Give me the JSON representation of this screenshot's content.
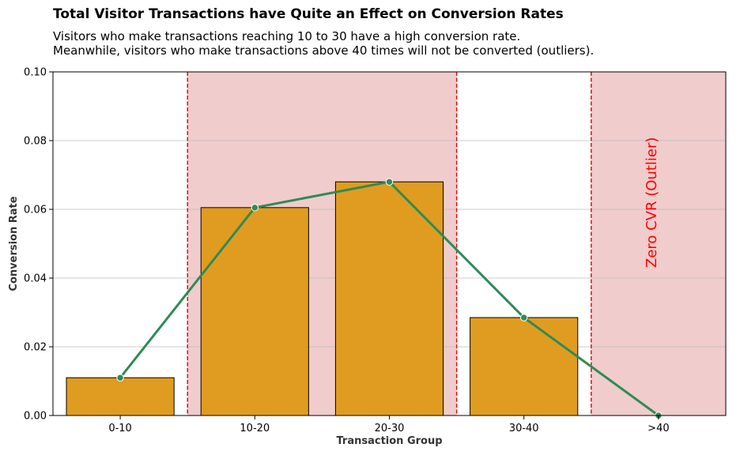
{
  "chart_data": {
    "type": "bar",
    "title": "Total Visitor Transactions have Quite an Effect on Conversion Rates",
    "subtitle_lines": [
      "Visitors who make transactions reaching 10 to 30 have a high conversion rate.",
      "Meanwhile, visitors who make transactions above 40 times will not be converted (outliers)."
    ],
    "xlabel": "Transaction Group",
    "ylabel": "Conversion Rate",
    "categories": [
      "0-10",
      "10-20",
      "20-30",
      "30-40",
      ">40"
    ],
    "values": [
      0.011,
      0.0605,
      0.068,
      0.0285,
      0.0
    ],
    "line_values": [
      0.011,
      0.0605,
      0.068,
      0.0285,
      0.0
    ],
    "ylim": [
      0,
      0.1
    ],
    "yticks": [
      "0.00",
      "0.02",
      "0.04",
      "0.06",
      "0.08",
      "0.10"
    ],
    "ytick_values": [
      0,
      0.02,
      0.04,
      0.06,
      0.08,
      0.1
    ],
    "grid": "horizontal",
    "highlight_ranges": [
      [
        "10-20",
        "20-30"
      ],
      [
        ">40",
        ">40"
      ]
    ],
    "annotation": "Zero CVR (Outlier)",
    "colors": {
      "bar": "#e09c20",
      "line": "#2e8b57",
      "highlight": "#f0cccc",
      "divider": "#e00000",
      "annotation": "#ff0000"
    }
  }
}
